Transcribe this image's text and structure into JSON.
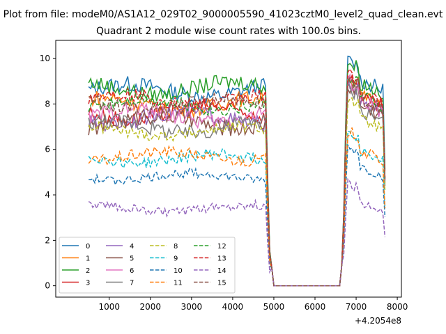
{
  "figure": {
    "suptitle": "Plot from file: modeM0/AS1A12_029T02_9000005590_41023cztM0_level2_quad_clean.evt",
    "axis_offset_label": "+4.2054e8"
  },
  "chart_data": {
    "type": "line",
    "title": "Quadrant 2 module wise count rates with 100.0s bins.",
    "xlabel": "",
    "ylabel": "",
    "x_offset": 420540000,
    "xlim": [
      -300,
      8100
    ],
    "ylim": [
      -0.5,
      10.8
    ],
    "xticks": [
      1000,
      2000,
      3000,
      4000,
      5000,
      6000,
      7000,
      8000
    ],
    "yticks": [
      0,
      2,
      4,
      6,
      8,
      10
    ],
    "grid": false,
    "legend": {
      "placement": "lower-left",
      "columns": 4
    },
    "segments": [
      {
        "x_start": 500,
        "x_end": 4800,
        "step": 50
      },
      {
        "x_start": 6650,
        "x_end": 7700,
        "step": 50
      }
    ],
    "series": [
      {
        "name": "0",
        "color": "#1f77b4",
        "dash": "solid",
        "level_a": 8.6,
        "level_b": 9.3,
        "noise": 0.35
      },
      {
        "name": "1",
        "color": "#ff7f0e",
        "dash": "solid",
        "level_a": 8.0,
        "level_b": 8.6,
        "noise": 0.35
      },
      {
        "name": "2",
        "color": "#2ca02c",
        "dash": "solid",
        "level_a": 8.7,
        "level_b": 9.2,
        "noise": 0.35
      },
      {
        "name": "3",
        "color": "#d62728",
        "dash": "solid",
        "level_a": 7.6,
        "level_b": 8.5,
        "noise": 0.35
      },
      {
        "name": "4",
        "color": "#9467bd",
        "dash": "solid",
        "level_a": 7.4,
        "level_b": 8.3,
        "noise": 0.35
      },
      {
        "name": "5",
        "color": "#8c564b",
        "dash": "solid",
        "level_a": 7.2,
        "level_b": 8.2,
        "noise": 0.35
      },
      {
        "name": "6",
        "color": "#e377c2",
        "dash": "solid",
        "level_a": 7.5,
        "level_b": 8.4,
        "noise": 0.35
      },
      {
        "name": "7",
        "color": "#7f7f7f",
        "dash": "solid",
        "level_a": 7.0,
        "level_b": 8.0,
        "noise": 0.35
      },
      {
        "name": "8",
        "color": "#bcbd22",
        "dash": "dashed",
        "level_a": 6.8,
        "level_b": 7.6,
        "noise": 0.25
      },
      {
        "name": "9",
        "color": "#17becf",
        "dash": "dashed",
        "level_a": 5.6,
        "level_b": 6.2,
        "noise": 0.25
      },
      {
        "name": "10",
        "color": "#1f77b4",
        "dash": "dashed",
        "level_a": 4.8,
        "level_b": 5.5,
        "noise": 0.2
      },
      {
        "name": "11",
        "color": "#ff7f0e",
        "dash": "dashed",
        "level_a": 5.7,
        "level_b": 6.2,
        "noise": 0.25
      },
      {
        "name": "12",
        "color": "#2ca02c",
        "dash": "dashed",
        "level_a": 8.0,
        "level_b": 8.6,
        "noise": 0.3
      },
      {
        "name": "13",
        "color": "#d62728",
        "dash": "dashed",
        "level_a": 8.2,
        "level_b": 8.7,
        "noise": 0.3
      },
      {
        "name": "14",
        "color": "#9467bd",
        "dash": "dashed",
        "level_a": 3.4,
        "level_b": 3.9,
        "noise": 0.2
      },
      {
        "name": "15",
        "color": "#8c564b",
        "dash": "dashed",
        "level_a": 8.0,
        "level_b": 8.5,
        "noise": 0.3
      }
    ]
  }
}
